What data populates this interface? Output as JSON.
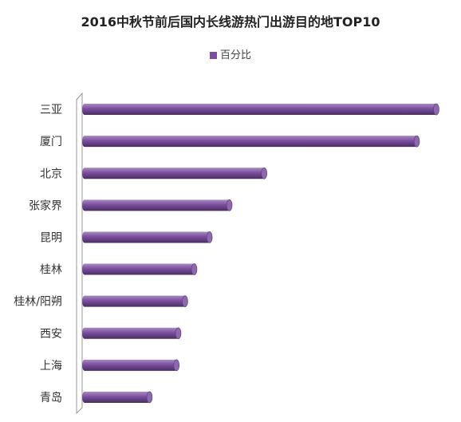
{
  "chart_data": {
    "type": "bar",
    "orientation": "horizontal",
    "title": "2016中秋节前后国内长线游热门出游目的地TOP10",
    "legend": "top",
    "categories": [
      "三亚",
      "厦门",
      "北京",
      "张家界",
      "昆明",
      "桂林",
      "桂林/阳朔",
      "西安",
      "上海",
      "青岛"
    ],
    "series": [
      {
        "name": "百分比",
        "color": "#7b4f9d",
        "values": [
          100,
          94.5,
          51.5,
          41.7,
          36.1,
          31.8,
          29.2,
          27.3,
          26.8,
          19.2
        ]
      }
    ],
    "grid": false
  }
}
